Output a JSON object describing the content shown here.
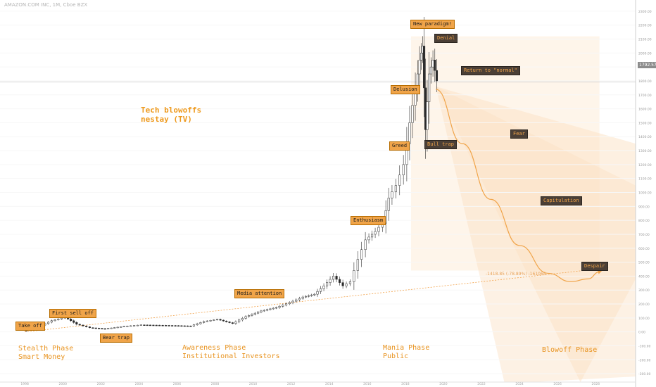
{
  "header": {
    "symbol_line": "AMAZON.COM INC, 1M, Cboe BZX"
  },
  "title": {
    "line1": "Tech blowoffs",
    "line2": "nestay (TV)"
  },
  "current_price": "1792.57",
  "fib_note": "-1418.85 (-78.89%) -161065",
  "annotations": [
    {
      "key": "take_off",
      "text": "Take off",
      "style": "orange"
    },
    {
      "key": "first_sell_off",
      "text": "First sell off",
      "style": "orange"
    },
    {
      "key": "bear_trap",
      "text": "Bear trap",
      "style": "orange"
    },
    {
      "key": "media_attention",
      "text": "Media attention",
      "style": "orange"
    },
    {
      "key": "enthusiasm",
      "text": "Enthusiasm",
      "style": "orange"
    },
    {
      "key": "greed",
      "text": "Greed",
      "style": "orange"
    },
    {
      "key": "delusion",
      "text": "Delusion",
      "style": "orange"
    },
    {
      "key": "new_paradigm",
      "text": "New paradigm!",
      "style": "orange"
    },
    {
      "key": "denial",
      "text": "Denial",
      "style": "dark"
    },
    {
      "key": "bull_trap",
      "text": "Bull trap",
      "style": "dark"
    },
    {
      "key": "return_normal",
      "text": "Return to \"normal\"",
      "style": "dark"
    },
    {
      "key": "fear",
      "text": "Fear",
      "style": "dark"
    },
    {
      "key": "capitulation",
      "text": "Capitulation",
      "style": "dark"
    },
    {
      "key": "despair",
      "text": "Despair",
      "style": "dark"
    }
  ],
  "phases": [
    {
      "key": "stealth",
      "line1": "Stealth Phase",
      "line2": "Smart Money"
    },
    {
      "key": "awareness",
      "line1": "Awareness Phase",
      "line2": "Institutional Investors"
    },
    {
      "key": "mania",
      "line1": "Mania Phase",
      "line2": "Public"
    },
    {
      "key": "blowoff",
      "line1": "Blowoff Phase",
      "line2": ""
    }
  ],
  "colors": {
    "accent": "#f0a449",
    "candle_up": "#ffffff",
    "candle_down": "#2b2b2b",
    "forecast": "#fbe1c4",
    "trendline": "#f2a24a"
  },
  "chart_data": {
    "type": "candlestick",
    "x_axis": {
      "labels": [
        "1998",
        "2000",
        "2002",
        "2004",
        "2006",
        "2008",
        "2010",
        "2012",
        "2014",
        "2016",
        "2018",
        "2020",
        "2022",
        "2024",
        "2026",
        "2028"
      ]
    },
    "y_axis": {
      "labels": [
        "2300.00",
        "2200.00",
        "2100.00",
        "2000.00",
        "1900.00",
        "1800.00",
        "1700.00",
        "1600.00",
        "1500.00",
        "1400.00",
        "1300.00",
        "1200.00",
        "1100.00",
        "1000.00",
        "900.00",
        "800.00",
        "700.00",
        "600.00",
        "500.00",
        "400.00",
        "300.00",
        "200.00",
        "100.00",
        "0.00",
        "-100.00",
        "-200.00",
        "-300.00"
      ]
    },
    "ylim": [
      -360,
      2360
    ],
    "series": [
      {
        "name": "price",
        "values": [
          [
            1998.0,
            5,
            40
          ],
          [
            1998.8,
            38,
            80
          ],
          [
            1999.5,
            80,
            105
          ],
          [
            2000.2,
            105,
            55
          ],
          [
            2000.8,
            55,
            30
          ],
          [
            2001.5,
            30,
            22
          ],
          [
            2002.3,
            22,
            40
          ],
          [
            2003.3,
            40,
            50
          ],
          [
            2004.2,
            50,
            48
          ],
          [
            2005.0,
            48,
            45
          ],
          [
            2006.0,
            45,
            42
          ],
          [
            2006.8,
            42,
            75
          ],
          [
            2007.5,
            75,
            90
          ],
          [
            2008.2,
            90,
            60
          ],
          [
            2009.0,
            60,
            110
          ],
          [
            2009.7,
            110,
            150
          ],
          [
            2010.5,
            150,
            175
          ],
          [
            2011.3,
            175,
            210
          ],
          [
            2012.0,
            210,
            250
          ],
          [
            2012.7,
            250,
            270
          ],
          [
            2013.3,
            270,
            330
          ],
          [
            2013.8,
            330,
            400
          ],
          [
            2014.3,
            400,
            330
          ],
          [
            2014.8,
            330,
            360
          ],
          [
            2015.2,
            360,
            520
          ],
          [
            2015.6,
            520,
            660
          ],
          [
            2016.0,
            660,
            720
          ],
          [
            2016.5,
            720,
            780
          ],
          [
            2016.9,
            780,
            960
          ],
          [
            2017.2,
            960,
            1050
          ],
          [
            2017.6,
            1050,
            1200
          ],
          [
            2018.0,
            1200,
            1500
          ],
          [
            2018.3,
            1500,
            1750
          ],
          [
            2018.6,
            1750,
            1950
          ],
          [
            2018.8,
            1950,
            2050
          ],
          [
            2018.95,
            2050,
            1450
          ],
          [
            2019.1,
            1450,
            1850
          ],
          [
            2019.3,
            1850,
            1950
          ],
          [
            2019.5,
            1950,
            1800
          ]
        ]
      }
    ],
    "forecast_curve": {
      "x": [
        2019.6,
        2021,
        2022.5,
        2024,
        2025.5,
        2026.7,
        2027.6,
        2028.2
      ],
      "y": [
        1740,
        1350,
        950,
        620,
        420,
        360,
        380,
        430
      ]
    },
    "trendline": {
      "x": [
        1998.0,
        2028.7
      ],
      "y": [
        0,
        460
      ]
    },
    "projection_box": {
      "x": [
        2018.3,
        2028.2
      ],
      "y": [
        440,
        2120
      ]
    }
  }
}
